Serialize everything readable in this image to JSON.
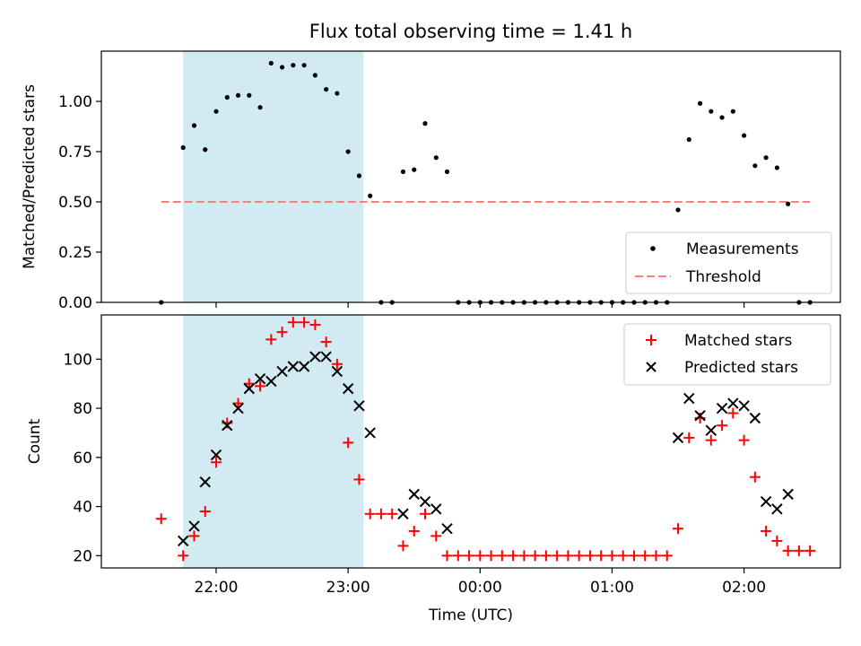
{
  "chart_data": [
    {
      "type": "scatter",
      "title": "Flux total observing time = 1.41 h",
      "xlabel": "",
      "ylabel": "Matched/Predicted stars",
      "x_axis": "time (UTC, hours since 00:00)",
      "xlim": [
        -2.87,
        2.73
      ],
      "ylim": [
        0,
        1.25
      ],
      "yticks": [
        "0.00",
        "0.25",
        "0.50",
        "0.75",
        "1.00"
      ],
      "ytick_values": [
        0,
        0.25,
        0.5,
        0.75,
        1.0
      ],
      "shaded_span": {
        "from": "21:45",
        "to": "23:07",
        "color": "#add8e6"
      },
      "threshold": {
        "name": "Threshold",
        "y": 0.5,
        "from": "21:35",
        "to": "02:30",
        "color": "#ff7f7f",
        "style": "dashed"
      },
      "legend": {
        "placement": "lower-right",
        "entries": [
          "Measurements",
          "Threshold"
        ]
      },
      "series": [
        {
          "name": "Measurements",
          "marker": "dot",
          "color": "#000000",
          "points": [
            [
              "21:35",
              0.0
            ],
            [
              "21:45",
              0.77
            ],
            [
              "21:50",
              0.88
            ],
            [
              "21:55",
              0.76
            ],
            [
              "22:00",
              0.95
            ],
            [
              "22:05",
              1.02
            ],
            [
              "22:10",
              1.03
            ],
            [
              "22:15",
              1.03
            ],
            [
              "22:20",
              0.97
            ],
            [
              "22:25",
              1.19
            ],
            [
              "22:30",
              1.17
            ],
            [
              "22:35",
              1.18
            ],
            [
              "22:40",
              1.18
            ],
            [
              "22:45",
              1.13
            ],
            [
              "22:50",
              1.06
            ],
            [
              "22:55",
              1.04
            ],
            [
              "23:00",
              0.75
            ],
            [
              "23:05",
              0.63
            ],
            [
              "23:10",
              0.53
            ],
            [
              "23:15",
              0.0
            ],
            [
              "23:20",
              0.0
            ],
            [
              "23:25",
              0.65
            ],
            [
              "23:30",
              0.66
            ],
            [
              "23:35",
              0.89
            ],
            [
              "23:40",
              0.72
            ],
            [
              "23:45",
              0.65
            ],
            [
              "23:50",
              0.0
            ],
            [
              "23:55",
              0.0
            ],
            [
              "00:00",
              0.0
            ],
            [
              "00:05",
              0.0
            ],
            [
              "00:10",
              0.0
            ],
            [
              "00:15",
              0.0
            ],
            [
              "00:20",
              0.0
            ],
            [
              "00:25",
              0.0
            ],
            [
              "00:30",
              0.0
            ],
            [
              "00:35",
              0.0
            ],
            [
              "00:40",
              0.0
            ],
            [
              "00:45",
              0.0
            ],
            [
              "00:50",
              0.0
            ],
            [
              "00:55",
              0.0
            ],
            [
              "01:00",
              0.0
            ],
            [
              "01:05",
              0.0
            ],
            [
              "01:10",
              0.0
            ],
            [
              "01:15",
              0.0
            ],
            [
              "01:20",
              0.0
            ],
            [
              "01:25",
              0.0
            ],
            [
              "01:30",
              0.46
            ],
            [
              "01:35",
              0.81
            ],
            [
              "01:40",
              0.99
            ],
            [
              "01:45",
              0.95
            ],
            [
              "01:50",
              0.92
            ],
            [
              "01:55",
              0.95
            ],
            [
              "02:00",
              0.83
            ],
            [
              "02:05",
              0.68
            ],
            [
              "02:10",
              0.72
            ],
            [
              "02:15",
              0.67
            ],
            [
              "02:20",
              0.49
            ],
            [
              "02:25",
              0.0
            ],
            [
              "02:30",
              0.0
            ]
          ]
        }
      ]
    },
    {
      "type": "scatter",
      "title": "",
      "xlabel": "Time (UTC)",
      "ylabel": "Count",
      "xlim": [
        -2.87,
        2.73
      ],
      "ylim": [
        15,
        118
      ],
      "yticks": [
        "20",
        "40",
        "60",
        "80",
        "100"
      ],
      "ytick_values": [
        20,
        40,
        60,
        80,
        100
      ],
      "xticks": [
        "22:00",
        "23:00",
        "00:00",
        "01:00",
        "02:00"
      ],
      "xtick_values": [
        -2,
        -1,
        0,
        1,
        2
      ],
      "shaded_span": {
        "from": "21:45",
        "to": "23:07",
        "color": "#add8e6"
      },
      "legend": {
        "placement": "upper-right",
        "entries": [
          "Matched stars",
          "Predicted stars"
        ]
      },
      "series": [
        {
          "name": "Matched stars",
          "marker": "plus",
          "color": "#ff0000",
          "points": [
            [
              "21:35",
              35
            ],
            [
              "21:45",
              20
            ],
            [
              "21:50",
              28
            ],
            [
              "21:55",
              38
            ],
            [
              "22:00",
              58
            ],
            [
              "22:05",
              74
            ],
            [
              "22:10",
              82
            ],
            [
              "22:15",
              90
            ],
            [
              "22:20",
              89
            ],
            [
              "22:25",
              108
            ],
            [
              "22:30",
              111
            ],
            [
              "22:35",
              115
            ],
            [
              "22:40",
              115
            ],
            [
              "22:45",
              114
            ],
            [
              "22:50",
              107
            ],
            [
              "22:55",
              98
            ],
            [
              "23:00",
              66
            ],
            [
              "23:05",
              51
            ],
            [
              "23:10",
              37
            ],
            [
              "23:15",
              37
            ],
            [
              "23:20",
              37
            ],
            [
              "23:25",
              24
            ],
            [
              "23:30",
              30
            ],
            [
              "23:35",
              37
            ],
            [
              "23:40",
              28
            ],
            [
              "23:45",
              20
            ],
            [
              "23:50",
              20
            ],
            [
              "23:55",
              20
            ],
            [
              "00:00",
              20
            ],
            [
              "00:05",
              20
            ],
            [
              "00:10",
              20
            ],
            [
              "00:15",
              20
            ],
            [
              "00:20",
              20
            ],
            [
              "00:25",
              20
            ],
            [
              "00:30",
              20
            ],
            [
              "00:35",
              20
            ],
            [
              "00:40",
              20
            ],
            [
              "00:45",
              20
            ],
            [
              "00:50",
              20
            ],
            [
              "00:55",
              20
            ],
            [
              "01:00",
              20
            ],
            [
              "01:05",
              20
            ],
            [
              "01:10",
              20
            ],
            [
              "01:15",
              20
            ],
            [
              "01:20",
              20
            ],
            [
              "01:25",
              20
            ],
            [
              "01:30",
              31
            ],
            [
              "01:35",
              68
            ],
            [
              "01:40",
              76
            ],
            [
              "01:45",
              67
            ],
            [
              "01:50",
              73
            ],
            [
              "01:55",
              78
            ],
            [
              "02:00",
              67
            ],
            [
              "02:05",
              52
            ],
            [
              "02:10",
              30
            ],
            [
              "02:15",
              26
            ],
            [
              "02:20",
              22
            ],
            [
              "02:25",
              22
            ],
            [
              "02:30",
              22
            ]
          ]
        },
        {
          "name": "Predicted stars",
          "marker": "x",
          "color": "#000000",
          "points": [
            [
              "21:45",
              26
            ],
            [
              "21:50",
              32
            ],
            [
              "21:55",
              50
            ],
            [
              "22:00",
              61
            ],
            [
              "22:05",
              73
            ],
            [
              "22:10",
              80
            ],
            [
              "22:15",
              88
            ],
            [
              "22:20",
              92
            ],
            [
              "22:25",
              91
            ],
            [
              "22:30",
              95
            ],
            [
              "22:35",
              97
            ],
            [
              "22:40",
              97
            ],
            [
              "22:45",
              101
            ],
            [
              "22:50",
              101
            ],
            [
              "22:55",
              95
            ],
            [
              "23:00",
              88
            ],
            [
              "23:05",
              81
            ],
            [
              "23:10",
              70
            ],
            [
              "23:25",
              37
            ],
            [
              "23:30",
              45
            ],
            [
              "23:35",
              42
            ],
            [
              "23:40",
              39
            ],
            [
              "23:45",
              31
            ],
            [
              "01:30",
              68
            ],
            [
              "01:35",
              84
            ],
            [
              "01:40",
              77
            ],
            [
              "01:45",
              71
            ],
            [
              "01:50",
              80
            ],
            [
              "01:55",
              82
            ],
            [
              "02:00",
              81
            ],
            [
              "02:05",
              76
            ],
            [
              "02:10",
              42
            ],
            [
              "02:15",
              39
            ],
            [
              "02:20",
              45
            ]
          ]
        }
      ]
    }
  ]
}
